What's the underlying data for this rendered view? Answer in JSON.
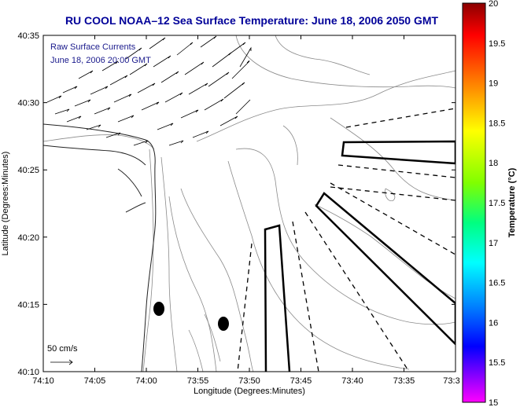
{
  "title": "RU COOL  NOAA–12  Sea Surface Temperature:  June 18, 2006 2050 GMT",
  "overlay": {
    "line1": "Raw Surface Currents",
    "line2": "June 18, 2006 20:00 GMT"
  },
  "axes": {
    "xlabel": "Longitude (Degrees:Minutes)",
    "ylabel": "Latitude (Degrees:Minutes)",
    "x_ticks": [
      "74:10",
      "74:05",
      "74:00",
      "73:55",
      "73:50",
      "73:45",
      "73:40",
      "73:35",
      "73:3"
    ],
    "y_ticks": [
      "40:35",
      "40:30",
      "40:25",
      "40:20",
      "40:15",
      "40:10"
    ]
  },
  "scale_label": "50 cm/s",
  "colorbar": {
    "label": "Temperature (°C)",
    "ticks": [
      "20",
      "19.5",
      "19",
      "18.5",
      "18",
      "17.5",
      "17",
      "16.5",
      "16",
      "15.5",
      "15"
    ],
    "colors": [
      "#8b0000",
      "#ff0000",
      "#ff8000",
      "#ffff00",
      "#80ff00",
      "#00ff80",
      "#00ffff",
      "#0080ff",
      "#0000ff",
      "#8000ff",
      "#ff00ff"
    ]
  }
}
